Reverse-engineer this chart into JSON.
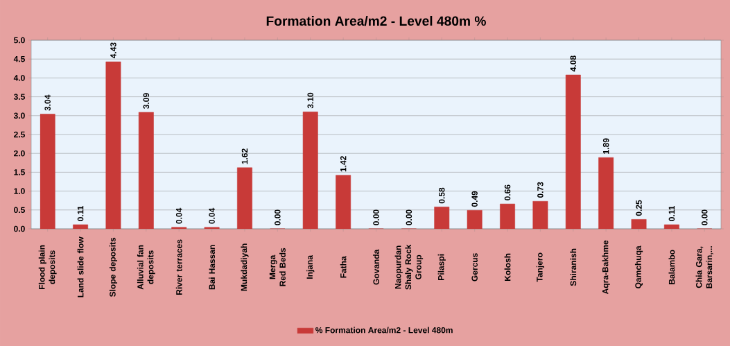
{
  "chart_data": {
    "type": "bar",
    "title": "Formation Area/m2 - Level 480m  %",
    "categories": [
      "Flood plain deposits",
      "Land slide flow",
      "Slope deposits",
      "Alluvial fan deposits",
      "River terraces",
      "Bai Hassan",
      "Mukdadiyah",
      "Merga Red Beds",
      "Injana",
      "Fatha",
      "Govanda",
      "Naopurdan Shaly Rock Group",
      "Pilaspi",
      "Gercus",
      "Kolosh",
      "Tanjero",
      "Shiranish",
      "Aqra-Bakhme",
      "Qamchuqa",
      "Balambo",
      "Chia Gara, Barsarin,..."
    ],
    "series": [
      {
        "name": "% Formation Area/m2 - Level 480m",
        "color": "#c83a38",
        "values": [
          3.04,
          0.11,
          4.43,
          3.09,
          0.04,
          0.04,
          1.62,
          0.0,
          3.1,
          1.42,
          0.0,
          0.0,
          0.58,
          0.49,
          0.66,
          0.73,
          4.08,
          1.89,
          0.25,
          0.11,
          0.0
        ],
        "value_labels": [
          "3.04",
          "0.11",
          "4.43",
          "3.09",
          "0.04",
          "0.04",
          "1.62",
          "0.00",
          "3.10",
          "1.42",
          "0.00",
          "0.00",
          "0.58",
          "0.49",
          "0.66",
          "0.73",
          "4.08",
          "1.89",
          "0.25",
          "0.11",
          "0.00"
        ]
      }
    ],
    "ylim": [
      0,
      5
    ],
    "yticks": [
      {
        "value": 0,
        "label": "0.0"
      },
      {
        "value": 0.5,
        "label": "0.5"
      },
      {
        "value": 1,
        "label": "1.0"
      },
      {
        "value": 1.5,
        "label": "1.5"
      },
      {
        "value": 2,
        "label": "2.0"
      },
      {
        "value": 2.5,
        "label": "2.5"
      },
      {
        "value": 3,
        "label": "3.0"
      },
      {
        "value": 3.5,
        "label": "3.5"
      },
      {
        "value": 4,
        "label": "4.0"
      },
      {
        "value": 4.5,
        "label": "4.5"
      },
      {
        "value": 5,
        "label": "5.0"
      }
    ],
    "grid": "y",
    "legend": "bottom"
  }
}
